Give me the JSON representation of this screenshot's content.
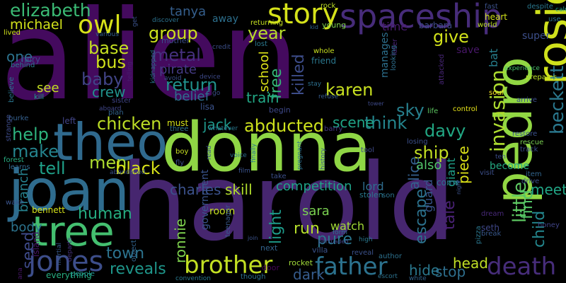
{
  "colors": {
    "background": "#000000"
  },
  "words": [
    {
      "text": "alien",
      "color": "#440a5e"
    },
    {
      "text": "harold",
      "color": "#46266f"
    },
    {
      "text": "donna",
      "color": "#8fd645"
    },
    {
      "text": "joan",
      "color": "#2f6c8e"
    },
    {
      "text": "theo",
      "color": "#306a8e"
    },
    {
      "text": "pedro",
      "color": "#91d743"
    },
    {
      "text": "rosie",
      "color": "#d0e11c"
    },
    {
      "text": "tree",
      "color": "#44bf70"
    },
    {
      "text": "spaceship",
      "color": "#472c7a"
    },
    {
      "text": "story",
      "color": "#d5e21a"
    },
    {
      "text": "owl",
      "color": "#d8e219"
    },
    {
      "text": "elizabeth",
      "color": "#3bbb75"
    },
    {
      "text": "michael",
      "color": "#d2e21b"
    },
    {
      "text": "jones",
      "color": "#3d4e8a"
    },
    {
      "text": "father",
      "color": "#2c728e"
    },
    {
      "text": "death",
      "color": "#472d7b"
    },
    {
      "text": "brother",
      "color": "#c2df23"
    },
    {
      "text": "karen",
      "color": "#c8e020"
    },
    {
      "text": "metal",
      "color": "#46307e"
    },
    {
      "text": "base",
      "color": "#c5e021"
    },
    {
      "text": "bus",
      "color": "#d0e11c"
    },
    {
      "text": "baby",
      "color": "#414487"
    },
    {
      "text": "group",
      "color": "#cde11d"
    },
    {
      "text": "year",
      "color": "#b8de29"
    },
    {
      "text": "return",
      "color": "#21918c"
    },
    {
      "text": "chicken",
      "color": "#bddf26"
    },
    {
      "text": "abducted",
      "color": "#cde11d"
    },
    {
      "text": "think",
      "color": "#24868e"
    },
    {
      "text": "davy",
      "color": "#22a884"
    },
    {
      "text": "sky",
      "color": "#27808e"
    },
    {
      "text": "ship",
      "color": "#c2df23"
    },
    {
      "text": "men",
      "color": "#addc30"
    },
    {
      "text": "make",
      "color": "#25848e"
    },
    {
      "text": "help",
      "color": "#2db27d"
    },
    {
      "text": "tell",
      "color": "#1fa088"
    },
    {
      "text": "black",
      "color": "#d8e219"
    },
    {
      "text": "human",
      "color": "#26ad81"
    },
    {
      "text": "reveals",
      "color": "#1f978b"
    },
    {
      "text": "town",
      "color": "#2c738e"
    },
    {
      "text": "little",
      "color": "#5ec962"
    },
    {
      "text": "beckett",
      "color": "#2a788e"
    },
    {
      "text": "invasion",
      "color": "#addc30"
    },
    {
      "text": "child",
      "color": "#24878e"
    },
    {
      "text": "find",
      "color": "#54c568"
    },
    {
      "text": "give",
      "color": "#d2e21b"
    },
    {
      "text": "tale",
      "color": "#482173"
    },
    {
      "text": "escape",
      "color": "#2c728e"
    },
    {
      "text": "run",
      "color": "#b5de2b"
    },
    {
      "text": "pure",
      "color": "#2a778e"
    },
    {
      "text": "competition",
      "color": "#1fa287"
    },
    {
      "text": "charles",
      "color": "#3b518b"
    },
    {
      "text": "skill",
      "color": "#b2dd2d"
    },
    {
      "text": "light",
      "color": "#1e9b8a"
    },
    {
      "text": "free",
      "color": "#35b779"
    },
    {
      "text": "killed",
      "color": "#3d4d8a"
    },
    {
      "text": "train",
      "color": "#22a785"
    },
    {
      "text": "meet",
      "color": "#21a585"
    },
    {
      "text": "hide",
      "color": "#2a788e"
    },
    {
      "text": "stop",
      "color": "#2e6f8e"
    },
    {
      "text": "head",
      "color": "#c0df25"
    },
    {
      "text": "seed",
      "color": "#3e4a89"
    },
    {
      "text": "body",
      "color": "#2c738e"
    },
    {
      "text": "one",
      "color": "#2c728e"
    },
    {
      "text": "see",
      "color": "#c5e021"
    },
    {
      "text": "crew",
      "color": "#21918c"
    },
    {
      "text": "jack",
      "color": "#1f988b"
    },
    {
      "text": "scene",
      "color": "#20a486"
    },
    {
      "text": "sara",
      "color": "#7ad151"
    },
    {
      "text": "watch",
      "color": "#a2da37"
    },
    {
      "text": "lord",
      "color": "#2f6c8e"
    },
    {
      "text": "alice",
      "color": "#34608d"
    },
    {
      "text": "also",
      "color": "#52c569"
    },
    {
      "text": "pirate",
      "color": "#443a83"
    },
    {
      "text": "belief",
      "color": "#2e6e8e"
    },
    {
      "text": "tanya",
      "color": "#355f8d"
    },
    {
      "text": "away",
      "color": "#2d708e"
    },
    {
      "text": "school",
      "color": "#dde318"
    },
    {
      "text": "manages",
      "color": "#2d708e"
    },
    {
      "text": "giant",
      "color": "#1fa088"
    },
    {
      "text": "piece",
      "color": "#dde318"
    },
    {
      "text": "ronnie",
      "color": "#7fd34e"
    },
    {
      "text": "dark",
      "color": "#365c8d"
    },
    {
      "text": "guard",
      "color": "#39568c"
    },
    {
      "text": "branch",
      "color": "#26818e"
    },
    {
      "text": "time",
      "color": "#481b6d"
    },
    {
      "text": "save",
      "color": "#481769"
    },
    {
      "text": "bat",
      "color": "#277f8e"
    },
    {
      "text": "super",
      "color": "#3c4f8a"
    },
    {
      "text": "room",
      "color": "#c5e021"
    },
    {
      "text": "become",
      "color": "#25ab82"
    },
    {
      "text": "barbara",
      "color": "#3e4c8a"
    },
    {
      "text": "government",
      "color": "#3a548c"
    },
    {
      "text": "mother",
      "color": "#3c4f8a"
    },
    {
      "text": "bennett",
      "color": "#d5e21a"
    },
    {
      "text": "friend",
      "color": "#2a778e"
    },
    {
      "text": "lisa",
      "color": "#3b528b"
    },
    {
      "text": "must",
      "color": "#d5e21a"
    },
    {
      "text": "three",
      "color": "#2c728e"
    },
    {
      "text": "begin",
      "color": "#3e4989"
    },
    {
      "text": "barry",
      "color": "#453882"
    },
    {
      "text": "forest",
      "color": "#26ad81"
    },
    {
      "text": "rescue",
      "color": "#7ad151"
    },
    {
      "text": "track",
      "color": "#3d4e8a"
    },
    {
      "text": "fly",
      "color": "#3c4f8a"
    },
    {
      "text": "boy",
      "color": "#c8e020"
    },
    {
      "text": "come",
      "color": "#2d708e"
    },
    {
      "text": "teenager",
      "color": "#38598c"
    },
    {
      "text": "everything",
      "color": "#27ad81"
    },
    {
      "text": "island",
      "color": "#481668"
    },
    {
      "text": "reveal",
      "color": "#3b518b"
    },
    {
      "text": "rocket",
      "color": "#a0da39"
    },
    {
      "text": "door",
      "color": "#450457"
    },
    {
      "text": "next",
      "color": "#33638d"
    },
    {
      "text": "villa",
      "color": "#3b528b"
    },
    {
      "text": "stolen",
      "color": "#2a778e"
    },
    {
      "text": "son",
      "color": "#2c728e"
    },
    {
      "text": "seth",
      "color": "#3f4788"
    },
    {
      "text": "break",
      "color": "#38588c"
    },
    {
      "text": "dream",
      "color": "#482979"
    },
    {
      "text": "honey",
      "color": "#414487"
    },
    {
      "text": "heart",
      "color": "#d2e21b"
    },
    {
      "text": "fast",
      "color": "#3b528b"
    },
    {
      "text": "world",
      "color": "#bddf26"
    },
    {
      "text": "calm",
      "color": "#1fa188"
    },
    {
      "text": "despite",
      "color": "#2a788e"
    },
    {
      "text": "use",
      "color": "#2c728e"
    },
    {
      "text": "rock",
      "color": "#bddf26"
    },
    {
      "text": "young",
      "color": "#7fd34e"
    },
    {
      "text": "lived",
      "color": "#d0e11c"
    },
    {
      "text": "various",
      "color": "#34608d"
    },
    {
      "text": "fairy",
      "color": "#3e4a89"
    },
    {
      "text": "behind",
      "color": "#2a788e"
    },
    {
      "text": "believe",
      "color": "#2a768e"
    },
    {
      "text": "kill",
      "color": "#1fa088"
    },
    {
      "text": "sister",
      "color": "#404588"
    },
    {
      "text": "plan",
      "color": "#32658e"
    },
    {
      "text": "aboard",
      "color": "#404688"
    },
    {
      "text": "burke",
      "color": "#35608d"
    },
    {
      "text": "strange",
      "color": "#3e4c8a"
    },
    {
      "text": "learns",
      "color": "#31688e"
    },
    {
      "text": "left",
      "color": "#414487"
    },
    {
      "text": "wake",
      "color": "#3a548c"
    },
    {
      "text": "object",
      "color": "#32648e"
    },
    {
      "text": "people",
      "color": "#21918c"
    },
    {
      "text": "martial",
      "color": "#38598c"
    },
    {
      "text": "departs",
      "color": "#46337e"
    },
    {
      "text": "abandoned",
      "color": "#3b528b"
    },
    {
      "text": "convention",
      "color": "#29798e"
    },
    {
      "text": "though",
      "color": "#2d708e"
    },
    {
      "text": "author",
      "color": "#2d718e"
    },
    {
      "text": "escort",
      "color": "#2c728e"
    },
    {
      "text": "white",
      "color": "#32658e"
    },
    {
      "text": "pizza",
      "color": "#2a778e"
    },
    {
      "text": "night",
      "color": "#3b528b"
    },
    {
      "text": "item",
      "color": "#32658e"
    },
    {
      "text": "drive",
      "color": "#3b528b"
    },
    {
      "text": "visit",
      "color": "#3c4f8a"
    },
    {
      "text": "ten",
      "color": "#3d4e8a"
    },
    {
      "text": "restore",
      "color": "#3b528b"
    },
    {
      "text": "control",
      "color": "#e7e419"
    },
    {
      "text": "life",
      "color": "#5ec962"
    },
    {
      "text": "soul",
      "color": "#fde725"
    },
    {
      "text": "arrive",
      "color": "#3c4f8a"
    },
    {
      "text": "experience",
      "color": "#4ac16d"
    },
    {
      "text": "attacked",
      "color": "#482677"
    },
    {
      "text": "prepares",
      "color": "#bddf26"
    },
    {
      "text": "later",
      "color": "#482576"
    },
    {
      "text": "looking",
      "color": "#2e6f8e"
    },
    {
      "text": "whole",
      "color": "#c8e020"
    },
    {
      "text": "stay",
      "color": "#2d708e"
    },
    {
      "text": "refuse",
      "color": "#365c8d"
    },
    {
      "text": "tower",
      "color": "#3e4a89"
    },
    {
      "text": "kid",
      "color": "#32658e"
    },
    {
      "text": "returning",
      "color": "#c5e021"
    },
    {
      "text": "lost",
      "color": "#2a788e"
    },
    {
      "text": "credit",
      "color": "#3c4f8a"
    },
    {
      "text": "discover",
      "color": "#2c728e"
    },
    {
      "text": "get",
      "color": "#3b528b"
    },
    {
      "text": "telling",
      "color": "#481c6e"
    },
    {
      "text": "kidnapped",
      "color": "#2a768e"
    },
    {
      "text": "avoid",
      "color": "#3c4f8a"
    },
    {
      "text": "device",
      "color": "#3e4a89"
    },
    {
      "text": "go",
      "color": "#3c4f8a"
    },
    {
      "text": "whatever",
      "color": "#2a788e"
    },
    {
      "text": "read",
      "color": "#3b528b"
    },
    {
      "text": "voice",
      "color": "#2d708e"
    },
    {
      "text": "film",
      "color": "#3b528b"
    },
    {
      "text": "finally",
      "color": "#2a788e"
    },
    {
      "text": "take",
      "color": "#3c4f8a"
    },
    {
      "text": "pregnant",
      "color": "#2d708e"
    },
    {
      "text": "history",
      "color": "#3b528b"
    },
    {
      "text": "losing",
      "color": "#3c4f8a"
    },
    {
      "text": "tool",
      "color": "#3e4a89"
    },
    {
      "text": "persuaded",
      "color": "#404588"
    },
    {
      "text": "form",
      "color": "#2c728e"
    },
    {
      "text": "high",
      "color": "#2a788e"
    },
    {
      "text": "join",
      "color": "#3b528b"
    },
    {
      "text": "ana",
      "color": "#481668"
    }
  ]
}
